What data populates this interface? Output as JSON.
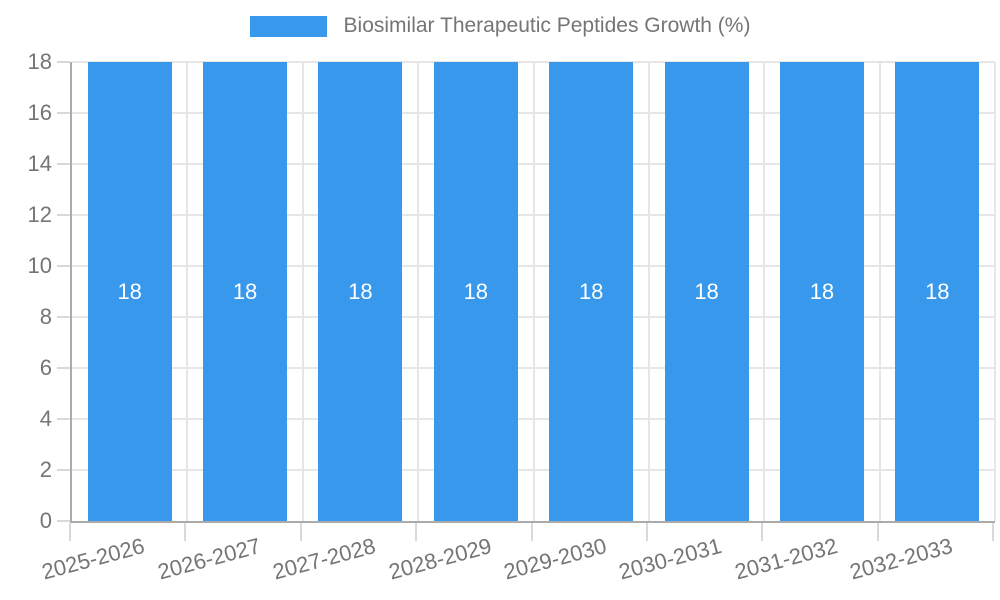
{
  "chart_data": {
    "type": "bar",
    "title": "Biosimilar Therapeutic Peptides Growth (%)",
    "categories": [
      "2025-2026",
      "2026-2027",
      "2027-2028",
      "2028-2029",
      "2029-2030",
      "2030-2031",
      "2031-2032",
      "2032-2033"
    ],
    "series": [
      {
        "name": "Biosimilar Therapeutic Peptides Growth (%)",
        "values": [
          18,
          18,
          18,
          18,
          18,
          18,
          18,
          18
        ]
      }
    ],
    "values": [
      18,
      18,
      18,
      18,
      18,
      18,
      18,
      18
    ],
    "bar_value_labels": [
      "18",
      "18",
      "18",
      "18",
      "18",
      "18",
      "18",
      "18"
    ],
    "xlabel": "",
    "ylabel": "",
    "ylim": [
      0,
      18
    ],
    "y_ticks": [
      0,
      2,
      4,
      6,
      8,
      10,
      12,
      14,
      16,
      18
    ],
    "grid": true,
    "legend_position": "top-center",
    "colors": {
      "bar": "#3898ec",
      "grid": "#e6e6e6",
      "tick": "#d9d9d9",
      "axis": "#ababab",
      "text": "#757575",
      "bar_label": "#ffffff",
      "background": "#ffffff"
    }
  }
}
